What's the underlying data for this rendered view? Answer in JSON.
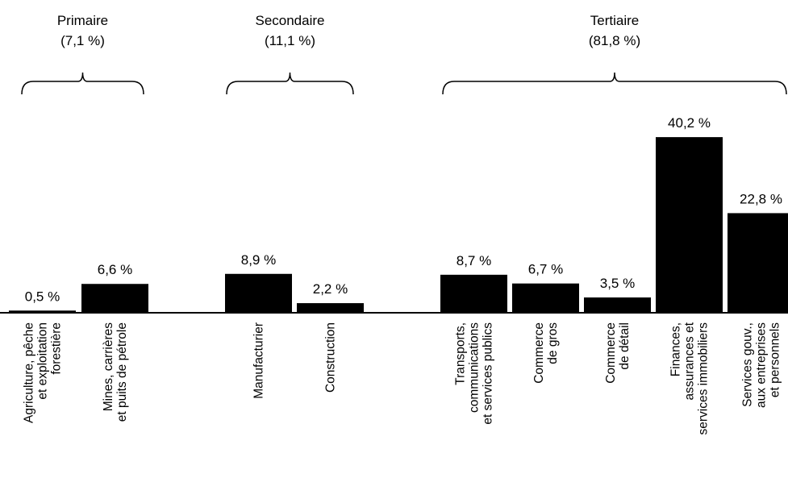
{
  "chart_data": {
    "type": "bar",
    "title": "",
    "xlabel": "",
    "ylabel": "",
    "groups": [
      {
        "name": "Primaire",
        "share": "(7,1 %)"
      },
      {
        "name": "Secondaire",
        "share": "(11,1 %)"
      },
      {
        "name": "Tertiaire",
        "share": "(81,8 %)"
      }
    ],
    "categories": [
      {
        "group": 0,
        "lines": [
          "Agriculture, pêche",
          "et exploitation",
          "forestière"
        ],
        "value": 0.5,
        "label": "0,5 %"
      },
      {
        "group": 0,
        "lines": [
          "Mines, carrières",
          "et puits de pétrole"
        ],
        "value": 6.6,
        "label": "6,6 %"
      },
      {
        "group": 1,
        "lines": [
          "Manufacturier"
        ],
        "value": 8.9,
        "label": "8,9 %"
      },
      {
        "group": 1,
        "lines": [
          "Construction"
        ],
        "value": 2.2,
        "label": "2,2 %"
      },
      {
        "group": 2,
        "lines": [
          "Transports,",
          "communications",
          "et services publics"
        ],
        "value": 8.7,
        "label": "8,7 %"
      },
      {
        "group": 2,
        "lines": [
          "Commerce",
          "de gros"
        ],
        "value": 6.7,
        "label": "6,7 %"
      },
      {
        "group": 2,
        "lines": [
          "Commerce",
          "de détail"
        ],
        "value": 3.5,
        "label": "3,5 %"
      },
      {
        "group": 2,
        "lines": [
          "Finances,",
          "assurances et",
          "services immobiliers"
        ],
        "value": 40.2,
        "label": "40,2 %"
      },
      {
        "group": 2,
        "lines": [
          "Services gouv.,",
          "aux entreprises",
          "et personnels"
        ],
        "value": 22.8,
        "label": "22,8 %"
      }
    ],
    "bar_color": "#000000",
    "grid": false,
    "legend": "none"
  }
}
